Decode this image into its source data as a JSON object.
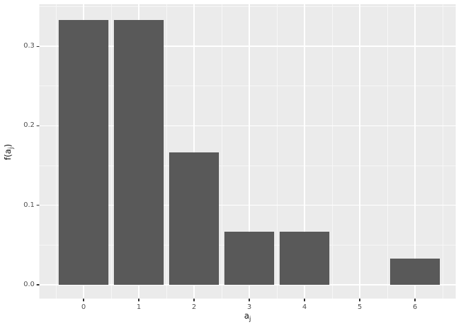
{
  "chart_data": {
    "type": "bar",
    "title": "",
    "categories": [
      "0",
      "1",
      "2",
      "3",
      "4",
      "5",
      "6"
    ],
    "values": [
      0.3333,
      0.3333,
      0.1667,
      0.0667,
      0.0667,
      0,
      0.0333
    ],
    "xlabel": {
      "base": "a",
      "sub": "j"
    },
    "ylabel": {
      "pre": "f(a",
      "sub": "j",
      "post": ")"
    },
    "xlim": [
      -0.8,
      6.8
    ],
    "ylim": [
      -0.017,
      0.353
    ],
    "yticks": {
      "values": [
        0,
        0.1,
        0.2,
        0.3
      ],
      "labels": [
        "0.0",
        "0.1",
        "0.2",
        "0.3"
      ]
    },
    "y_minor": [
      0.05,
      0.15,
      0.25,
      0.35
    ],
    "grid": true,
    "legend": false,
    "style": "ggplot2-theme-grey",
    "colors": {
      "bar": "#595959",
      "panel_bg": "#EBEBEB",
      "grid_major": "#FFFFFF",
      "grid_minor": "#F7F7F7",
      "tick": "#333333",
      "tick_label": "#4D4D4D",
      "axis_title": "#111111",
      "figure_bg": "#FFFFFF"
    }
  }
}
